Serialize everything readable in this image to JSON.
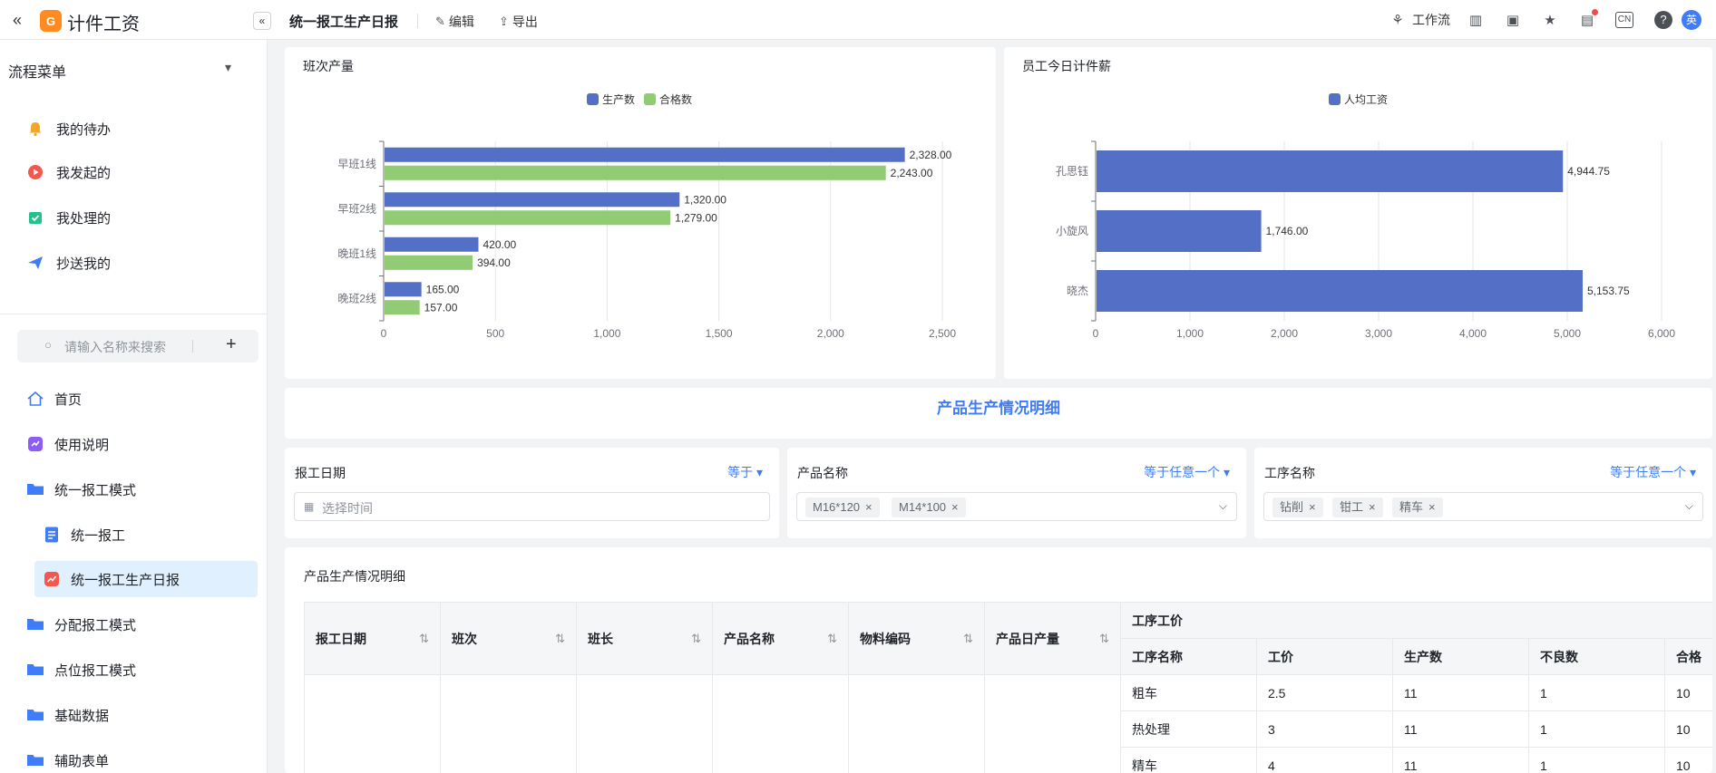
{
  "app": {
    "title": "计件工资",
    "logo_text": "G"
  },
  "toolbar": {
    "page_title": "统一报工生产日报",
    "edit_label": "编辑",
    "export_label": "导出",
    "workflow_label": "工作流",
    "lang_badge": "CN",
    "avatar_text": "英"
  },
  "flow_menu": {
    "title": "流程菜单",
    "items": [
      {
        "label": "我的待办",
        "icon": "bell-icon",
        "color": "#f5a623"
      },
      {
        "label": "我发起的",
        "icon": "play-circle-icon",
        "color": "#f5574d"
      },
      {
        "label": "我处理的",
        "icon": "check-doc-icon",
        "color": "#26c08a"
      },
      {
        "label": "抄送我的",
        "icon": "send-icon",
        "color": "#3f7cf6"
      }
    ]
  },
  "search": {
    "placeholder": "请输入名称来搜索"
  },
  "nav": [
    {
      "label": "首页",
      "icon": "home-icon"
    },
    {
      "label": "使用说明",
      "icon": "guide-icon"
    },
    {
      "label": "统一报工模式",
      "icon": "folder-icon"
    },
    {
      "label": "统一报工",
      "icon": "form-icon"
    },
    {
      "label": "统一报工生产日报",
      "icon": "report-icon"
    },
    {
      "label": "分配报工模式",
      "icon": "folder-icon"
    },
    {
      "label": "点位报工模式",
      "icon": "folder-icon"
    },
    {
      "label": "基础数据",
      "icon": "folder-icon"
    },
    {
      "label": "辅助表单",
      "icon": "folder-icon"
    }
  ],
  "colors": {
    "blue": "#5470c6",
    "green": "#91cc75",
    "accent": "#3f7cf6"
  },
  "chart_data": [
    {
      "type": "bar",
      "orientation": "horizontal",
      "title": "班次产量",
      "categories": [
        "早班1线",
        "早班2线",
        "晚班1线",
        "晚班2线"
      ],
      "series": [
        {
          "name": "生产数",
          "values": [
            2328.0,
            1320.0,
            420.0,
            165.0
          ],
          "labels": [
            "2,328.00",
            "1,320.00",
            "420.00",
            "165.00"
          ]
        },
        {
          "name": "合格数",
          "values": [
            2243.0,
            1279.0,
            394.0,
            157.0
          ],
          "labels": [
            "2,243.00",
            "1,279.00",
            "394.00",
            "157.00"
          ]
        }
      ],
      "xlim": [
        0,
        2500
      ],
      "xticks": [
        "0",
        "500",
        "1,000",
        "1,500",
        "2,000",
        "2,500"
      ],
      "legend": "top-center",
      "grid": true
    },
    {
      "type": "bar",
      "orientation": "horizontal",
      "title": "员工今日计件薪",
      "categories": [
        "孔思钰",
        "小旋风",
        "晓杰"
      ],
      "series": [
        {
          "name": "人均工资",
          "values": [
            4944.75,
            1746.0,
            5153.75
          ],
          "labels": [
            "4,944.75",
            "1,746.00",
            "5,153.75"
          ]
        }
      ],
      "xlim": [
        0,
        6000
      ],
      "xticks": [
        "0",
        "1,000",
        "2,000",
        "3,000",
        "4,000",
        "5,000",
        "6,000"
      ],
      "legend": "top-center",
      "grid": true
    }
  ],
  "section_title": "产品生产情况明细",
  "filters": [
    {
      "label": "报工日期",
      "op": "等于",
      "placeholder": "选择时间",
      "tags": []
    },
    {
      "label": "产品名称",
      "op": "等于任意一个",
      "tags": [
        "M16*120",
        "M14*100"
      ]
    },
    {
      "label": "工序名称",
      "op": "等于任意一个",
      "tags": [
        "钻削",
        "钳工",
        "精车"
      ]
    }
  ],
  "table": {
    "title": "产品生产情况明细",
    "columns": [
      "报工日期",
      "班次",
      "班长",
      "产品名称",
      "物料编码",
      "产品日产量"
    ],
    "group_header": "工序工价",
    "sub_columns": [
      "工序名称",
      "工价",
      "生产数",
      "不良数",
      "合格"
    ],
    "rows": [
      [
        "粗车",
        "2.5",
        "11",
        "1",
        "10"
      ],
      [
        "热处理",
        "3",
        "11",
        "1",
        "10"
      ],
      [
        "精车",
        "4",
        "11",
        "1",
        "10"
      ]
    ]
  }
}
